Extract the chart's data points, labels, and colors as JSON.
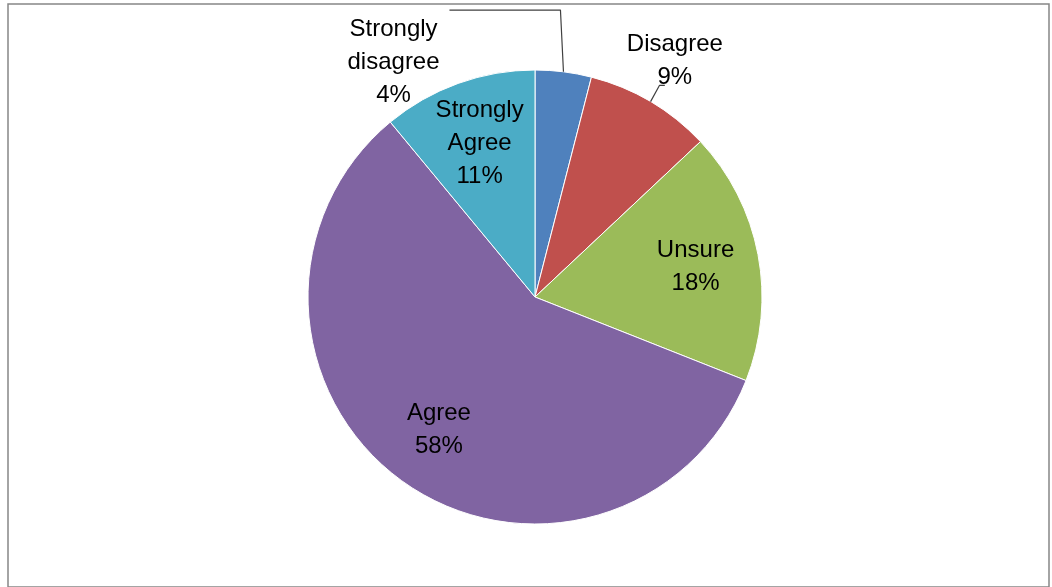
{
  "chart_data": {
    "type": "pie",
    "categories": [
      "Strongly disagree",
      "Disagree",
      "Unsure",
      "Agree",
      "Strongly Agree"
    ],
    "values": [
      4,
      9,
      18,
      58,
      11
    ],
    "colors": [
      "#4f81bd",
      "#c0504d",
      "#9bbb59",
      "#8064a2",
      "#4bacc6"
    ],
    "value_labels": [
      "4%",
      "9%",
      "18%",
      "58%",
      "11%"
    ]
  }
}
